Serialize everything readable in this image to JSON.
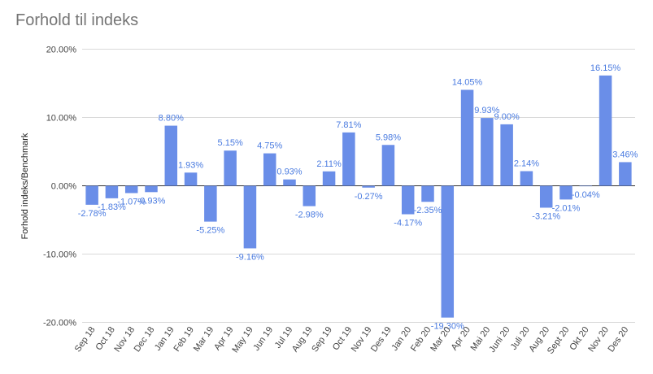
{
  "chart_data": {
    "type": "bar",
    "title": "Forhold til indeks",
    "xlabel": "",
    "ylabel": "Forhold indeks/Benchmark",
    "ylim": [
      -20,
      20
    ],
    "yticks": [
      20,
      10,
      0,
      -10,
      -20
    ],
    "ytick_labels": [
      "20.00%",
      "10.00%",
      "0.00%",
      "-10.00%",
      "-20.00%"
    ],
    "grid": true,
    "bar_color": "#6a8ee8",
    "label_color": "#4a7be0",
    "categories": [
      "Sep 18",
      "Oct 18",
      "Nov 18",
      "Dec 18",
      "Jan 19",
      "Feb 19",
      "Mar 19",
      "Apr 19",
      "May 19",
      "Jun 19",
      "Jul 19",
      "Aug 19",
      "Sep 19",
      "Oct 19",
      "Nov 19",
      "Des 19",
      "Jan 20",
      "Feb 20",
      "Mar 20",
      "Apr 20",
      "Mai 20",
      "Juni 20",
      "Juli 20",
      "Aug 20",
      "Sept 20",
      "Okt 20",
      "Nov 20",
      "Des 20"
    ],
    "values": [
      -2.78,
      -1.83,
      -1.07,
      -0.93,
      8.8,
      1.93,
      -5.25,
      5.15,
      -9.16,
      4.75,
      0.93,
      -2.98,
      2.11,
      7.81,
      -0.27,
      5.98,
      -4.17,
      -2.35,
      -19.3,
      14.05,
      9.93,
      9.0,
      2.14,
      -3.21,
      -2.01,
      -0.04,
      16.15,
      3.46
    ],
    "value_labels": [
      "-2.78%",
      "-1.83%",
      "-1.07%",
      "-0.93%",
      "8.80%",
      "1.93%",
      "-5.25%",
      "5.15%",
      "-9.16%",
      "4.75%",
      "0.93%",
      "-2.98%",
      "2.11%",
      "7.81%",
      "-0.27%",
      "5.98%",
      "-4.17%",
      "-2.35%",
      "-19.30%",
      "14.05%",
      "9.93%",
      "9.00%",
      "2.14%",
      "-3.21%",
      "-2.01%",
      "-0.04%",
      "16.15%",
      "3.46%"
    ]
  }
}
